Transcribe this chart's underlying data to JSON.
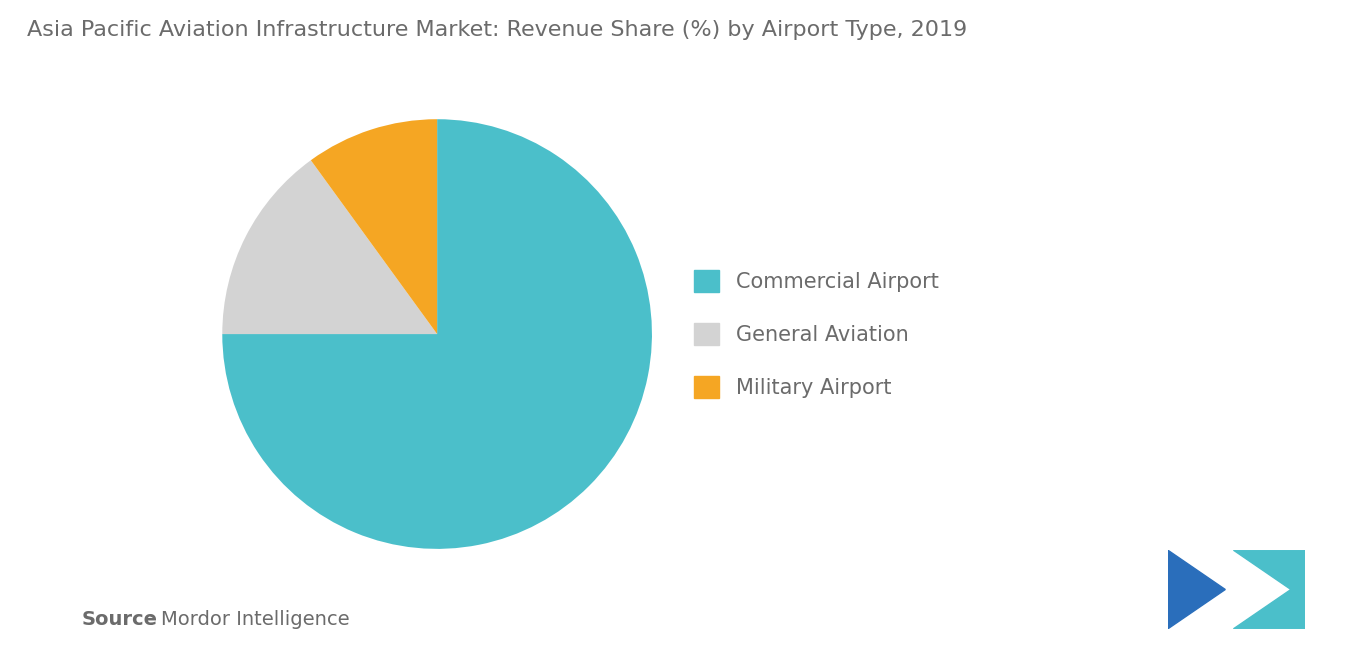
{
  "title": "Asia Pacific Aviation Infrastructure Market: Revenue Share (%) by Airport Type, 2019",
  "slices": [
    75,
    15,
    10
  ],
  "labels": [
    "Commercial Airport",
    "General Aviation",
    "Military Airport"
  ],
  "colors": [
    "#4BBFCA",
    "#D3D3D3",
    "#F5A623"
  ],
  "startangle": 90,
  "background_color": "#FFFFFF",
  "title_color": "#6B6B6B",
  "title_fontsize": 16,
  "legend_fontsize": 15,
  "source_bold": "Source",
  "source_normal": " : Mordor Intelligence",
  "source_fontsize": 14,
  "source_color": "#6B6B6B",
  "logo_left_color": "#2A6EBB",
  "logo_right_color": "#4BBFCA"
}
